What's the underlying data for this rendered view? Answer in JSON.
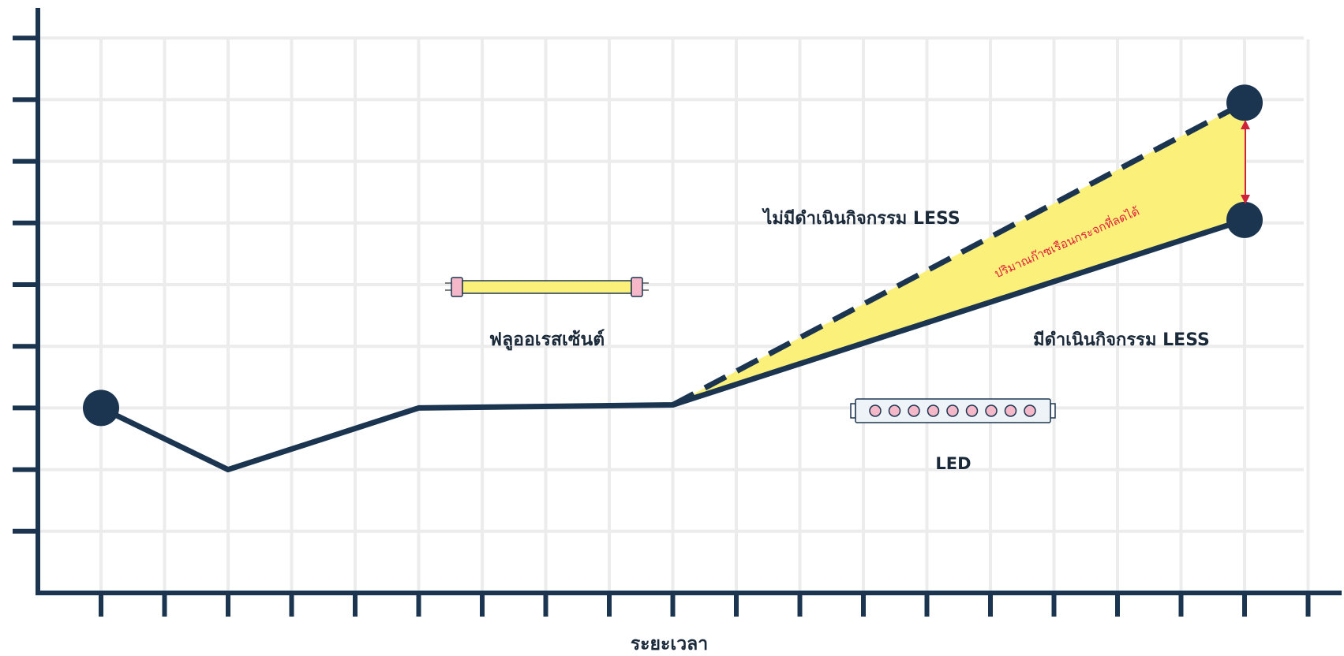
{
  "chart_data": {
    "type": "line",
    "xlabel": "ระยะเวลา",
    "ylabel": "",
    "grid": true,
    "x_ticks": 20,
    "y_ticks": 9,
    "series": [
      {
        "name": "มีดำเนินกิจกรรม LESS",
        "style": "solid",
        "points": [
          [
            0,
            3
          ],
          [
            2,
            2
          ],
          [
            5,
            3
          ],
          [
            9,
            3.05
          ],
          [
            18,
            6.05
          ]
        ]
      },
      {
        "name": "ไม่มีดำเนินกิจกรรม LESS",
        "style": "dashed",
        "points": [
          [
            9,
            3.05
          ],
          [
            18,
            7.95
          ]
        ]
      }
    ],
    "markers": [
      [
        0,
        3
      ],
      [
        18,
        7.95
      ],
      [
        18,
        6.05
      ]
    ],
    "shaded_region": {
      "label": "ปริมาณก๊าซเรือนกระจกที่ลดได้",
      "color": "#fbf07a"
    },
    "annotations": {
      "fluorescent": "ฟลูออเรสเซ้นต์",
      "led": "LED"
    }
  },
  "colors": {
    "line": "#1b3550",
    "grid": "#ececec",
    "axis": "#1b3550",
    "fill": "#fbf07a",
    "arrow": "#d0203a"
  }
}
